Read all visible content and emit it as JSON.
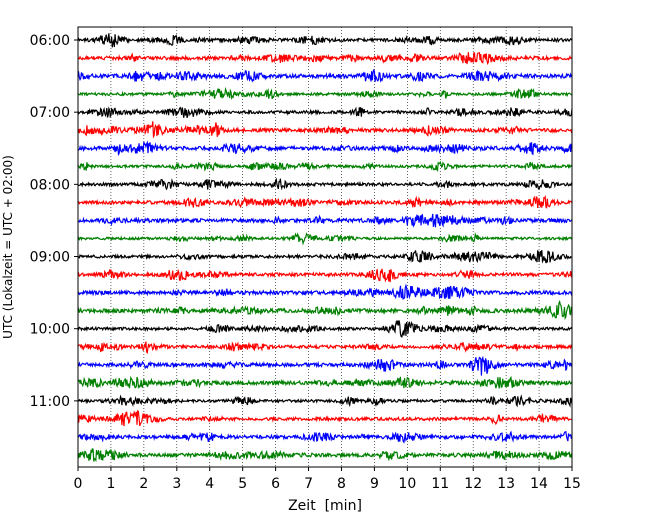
{
  "chart_data": {
    "type": "line",
    "title": "",
    "xlabel": "Zeit  [min]",
    "ylabel": "UTC (Lokalzeit = UTC + 02:00)",
    "xlim": [
      0,
      15
    ],
    "x_ticks": [
      "0",
      "1",
      "2",
      "3",
      "4",
      "5",
      "6",
      "7",
      "8",
      "9",
      "10",
      "11",
      "12",
      "13",
      "14",
      "15"
    ],
    "y_tick_labels": [
      "06:00",
      "07:00",
      "08:00",
      "09:00",
      "10:00",
      "11:00"
    ],
    "grid": "vertical dotted lines at each minute",
    "trace_colors": [
      "#000000",
      "#ff0000",
      "#0000ff",
      "#008000"
    ],
    "traces": [
      {
        "start": "06:00",
        "color": "#000000"
      },
      {
        "start": "06:15",
        "color": "#ff0000"
      },
      {
        "start": "06:30",
        "color": "#0000ff"
      },
      {
        "start": "06:45",
        "color": "#008000"
      },
      {
        "start": "07:00",
        "color": "#000000"
      },
      {
        "start": "07:15",
        "color": "#ff0000"
      },
      {
        "start": "07:30",
        "color": "#0000ff"
      },
      {
        "start": "07:45",
        "color": "#008000"
      },
      {
        "start": "08:00",
        "color": "#000000"
      },
      {
        "start": "08:15",
        "color": "#ff0000"
      },
      {
        "start": "08:30",
        "color": "#0000ff"
      },
      {
        "start": "08:45",
        "color": "#008000"
      },
      {
        "start": "09:00",
        "color": "#000000"
      },
      {
        "start": "09:15",
        "color": "#ff0000"
      },
      {
        "start": "09:30",
        "color": "#0000ff"
      },
      {
        "start": "09:45",
        "color": "#008000"
      },
      {
        "start": "10:00",
        "color": "#000000"
      },
      {
        "start": "10:15",
        "color": "#ff0000"
      },
      {
        "start": "10:30",
        "color": "#0000ff"
      },
      {
        "start": "10:45",
        "color": "#008000"
      },
      {
        "start": "11:00",
        "color": "#000000"
      },
      {
        "start": "11:15",
        "color": "#ff0000"
      },
      {
        "start": "11:30",
        "color": "#0000ff"
      },
      {
        "start": "11:45",
        "color": "#008000"
      }
    ]
  }
}
